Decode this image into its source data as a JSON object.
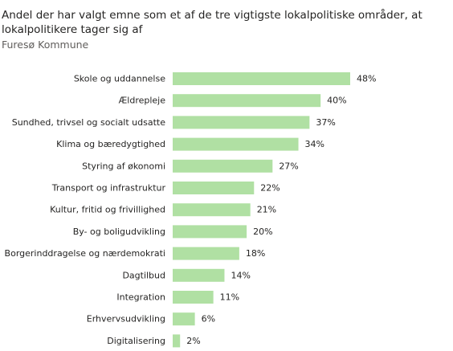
{
  "title": "Andel der har valgt emne som et af de tre vigtigste lokalpolitiske områder, at lokalpolitikere tager sig af",
  "subtitle": "Furesø Kommune",
  "colors": {
    "bar": "#b0e0a3"
  },
  "chart_data": {
    "type": "bar",
    "orientation": "horizontal",
    "title": "Andel der har valgt emne som et af de tre vigtigste lokalpolitiske områder, at lokalpolitikere tager sig af",
    "subtitle": "Furesø Kommune",
    "unit": "%",
    "categories": [
      "Skole og uddannelse",
      "Ældrepleje",
      "Sundhed, trivsel og socialt udsatte",
      "Klima og bæredygtighed",
      "Styring af økonomi",
      "Transport og infrastruktur",
      "Kultur, fritid og frivillighed",
      "By- og boligudvikling",
      "Borgerinddragelse og nærdemokrati",
      "Dagtilbud",
      "Integration",
      "Erhvervsudvikling",
      "Digitalisering"
    ],
    "values": [
      48,
      40,
      37,
      34,
      27,
      22,
      21,
      20,
      18,
      14,
      11,
      6,
      2
    ],
    "value_labels": [
      "48%",
      "40%",
      "37%",
      "34%",
      "27%",
      "22%",
      "21%",
      "20%",
      "18%",
      "14%",
      "11%",
      "6%",
      "2%"
    ],
    "xlim": [
      0,
      48
    ],
    "grid": false,
    "legend": "none"
  }
}
